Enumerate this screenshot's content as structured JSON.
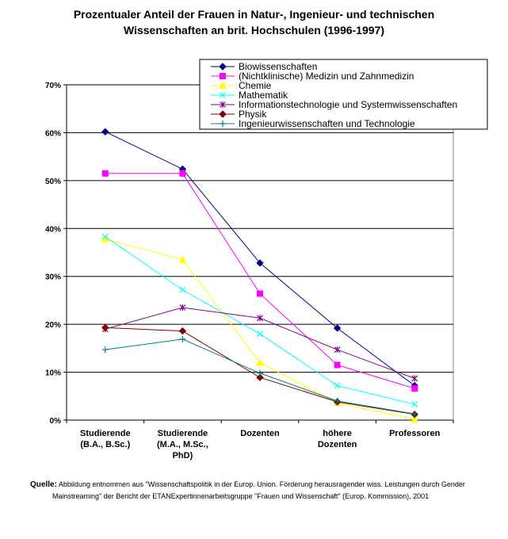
{
  "title_line1": "Prozentualer Anteil der Frauen in Natur-, Ingenieur- und technischen",
  "title_line2": "Wissenschaften an brit. Hochschulen (1996-1997)",
  "source": {
    "label": "Quelle:",
    "line1": "Abbildung entnommen aus \"Wissenschaftspolitik in der Europ. Union. Förderung herausragender wiss. Leistungen durch  Gender",
    "line2": "Mainstreaming\" der Bericht der ETANExpertinnenarbeitsgruppe \"Frauen und Wissenschaft\" (Europ. Kommission), 2001"
  },
  "chart_data": {
    "type": "line",
    "categories": [
      [
        "Studierende",
        "(B.A., B.Sc.)"
      ],
      [
        "Studierende",
        "(M.A., M.Sc.,",
        "PhD)"
      ],
      [
        "Dozenten"
      ],
      [
        "höhere",
        "Dozenten"
      ],
      [
        "Professoren"
      ]
    ],
    "y_ticks": [
      "0%",
      "10%",
      "20%",
      "30%",
      "40%",
      "50%",
      "60%",
      "70%"
    ],
    "ylim": [
      0,
      70
    ],
    "grid": true,
    "legend_position": "top-right",
    "series": [
      {
        "name": "Biowissenschaften",
        "color": "#000080",
        "marker": "diamond",
        "values": [
          60.2,
          52.4,
          32.8,
          19.2,
          7.2
        ]
      },
      {
        "name": "(Nichtklinische) Medizin und Zahnmedizin",
        "color": "#FF00FF",
        "marker": "square",
        "values": [
          51.5,
          51.5,
          26.4,
          11.5,
          6.6
        ]
      },
      {
        "name": "Chemie",
        "color": "#FFFF00",
        "marker": "triangle",
        "values": [
          37.8,
          33.5,
          12.0,
          3.6,
          0.2
        ]
      },
      {
        "name": "Mathematik",
        "color": "#00FFFF",
        "marker": "x",
        "values": [
          38.3,
          27.2,
          18.0,
          7.2,
          3.3
        ]
      },
      {
        "name": "Informationstechnologie und Systemwissenschaften",
        "color": "#800080",
        "marker": "star",
        "values": [
          19.0,
          23.5,
          21.3,
          14.7,
          8.7
        ]
      },
      {
        "name": "Physik",
        "color": "#800000",
        "marker": "diamond",
        "values": [
          19.3,
          18.6,
          8.9,
          3.8,
          1.2
        ]
      },
      {
        "name": "Ingenieurwissenschaften und Technologie",
        "color": "#008080",
        "marker": "plus",
        "values": [
          14.7,
          16.9,
          9.8,
          4.0,
          1.3
        ]
      }
    ]
  }
}
